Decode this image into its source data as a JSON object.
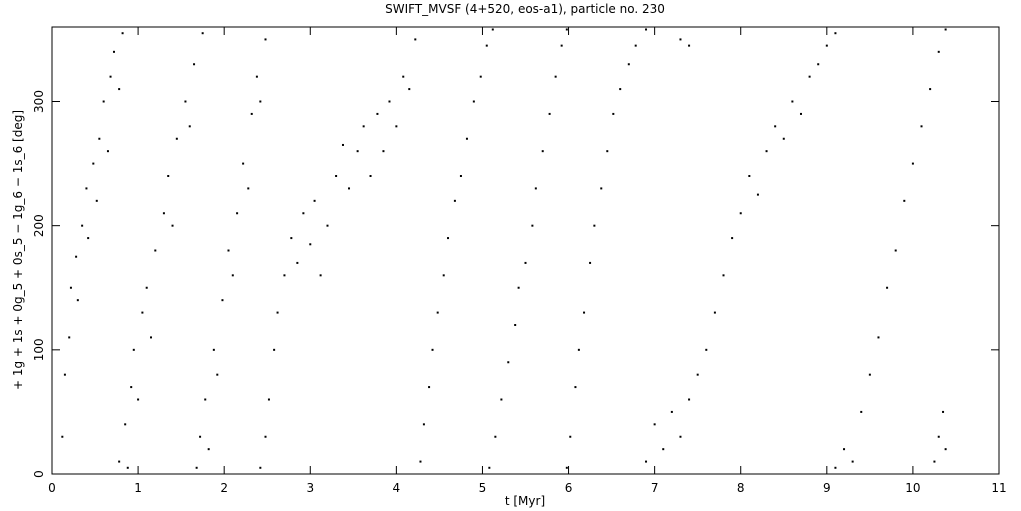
{
  "chart_data": {
    "type": "scatter",
    "title": "SWIFT_MVSF (4+520, eos-a1), particle no. 230",
    "x_label": "t [Myr]",
    "y_label": "+ 1g + 1s + 0g_5 + 0s_5 − 1g_6 − 1s_6 [deg]",
    "color": "#000000",
    "xlim": [
      0,
      11
    ],
    "ylim": [
      0,
      360
    ],
    "xticks": [
      0,
      1,
      2,
      3,
      4,
      5,
      6,
      7,
      8,
      9,
      10,
      11
    ],
    "yticks": [
      0,
      100,
      200,
      300
    ],
    "x": [
      0.12,
      0.15,
      0.2,
      0.22,
      0.28,
      0.3,
      0.35,
      0.4,
      0.42,
      0.48,
      0.52,
      0.55,
      0.6,
      0.65,
      0.68,
      0.72,
      0.78,
      0.82,
      0.78,
      0.85,
      0.88,
      0.92,
      0.95,
      1.0,
      1.05,
      1.1,
      1.15,
      1.2,
      1.3,
      1.35,
      1.4,
      1.45,
      1.55,
      1.6,
      1.65,
      1.75,
      1.68,
      1.72,
      1.78,
      1.82,
      1.88,
      1.92,
      1.98,
      2.05,
      2.1,
      2.15,
      2.22,
      2.28,
      2.32,
      2.38,
      2.42,
      2.48,
      2.42,
      2.48,
      2.52,
      2.58,
      2.62,
      2.7,
      2.78,
      2.85,
      2.92,
      3.0,
      3.05,
      3.12,
      3.2,
      3.3,
      3.38,
      3.45,
      3.55,
      3.62,
      3.7,
      3.78,
      3.85,
      3.92,
      4.0,
      4.08,
      4.15,
      4.22,
      4.28,
      4.32,
      4.38,
      4.42,
      4.48,
      4.55,
      4.6,
      4.68,
      4.75,
      4.82,
      4.9,
      4.98,
      5.05,
      5.12,
      5.08,
      5.15,
      5.22,
      5.3,
      5.38,
      5.42,
      5.5,
      5.58,
      5.62,
      5.7,
      5.78,
      5.85,
      5.92,
      5.98,
      5.98,
      6.02,
      6.08,
      6.12,
      6.18,
      6.25,
      6.3,
      6.38,
      6.45,
      6.52,
      6.6,
      6.7,
      6.78,
      6.9,
      7.3,
      7.4,
      6.9,
      7.0,
      7.1,
      7.2,
      7.3,
      7.4,
      7.5,
      7.6,
      7.7,
      7.8,
      7.9,
      8.0,
      8.1,
      8.2,
      8.3,
      8.4,
      8.5,
      8.6,
      8.7,
      8.8,
      8.9,
      9.0,
      9.1,
      9.1,
      9.2,
      9.3,
      9.4,
      9.5,
      9.6,
      9.7,
      9.8,
      9.9,
      10.0,
      10.1,
      10.2,
      10.3,
      10.38,
      10.25,
      10.3,
      10.35,
      10.38
    ],
    "y": [
      30,
      80,
      110,
      150,
      175,
      140,
      200,
      230,
      190,
      250,
      220,
      270,
      300,
      260,
      320,
      340,
      310,
      355,
      10,
      40,
      5,
      70,
      100,
      60,
      130,
      150,
      110,
      180,
      210,
      240,
      200,
      270,
      300,
      280,
      330,
      355,
      5,
      30,
      60,
      20,
      100,
      80,
      140,
      180,
      160,
      210,
      250,
      230,
      290,
      320,
      300,
      350,
      5,
      30,
      60,
      100,
      130,
      160,
      190,
      170,
      210,
      185,
      220,
      160,
      200,
      240,
      265,
      230,
      260,
      280,
      240,
      290,
      260,
      300,
      280,
      320,
      310,
      350,
      10,
      40,
      70,
      100,
      130,
      160,
      190,
      220,
      240,
      270,
      300,
      320,
      345,
      358,
      5,
      30,
      60,
      90,
      120,
      150,
      170,
      200,
      230,
      260,
      290,
      320,
      345,
      358,
      5,
      30,
      70,
      100,
      130,
      170,
      200,
      230,
      260,
      290,
      310,
      330,
      345,
      358,
      350,
      345,
      10,
      40,
      20,
      50,
      30,
      60,
      80,
      100,
      130,
      160,
      190,
      210,
      240,
      225,
      260,
      280,
      270,
      300,
      290,
      320,
      330,
      345,
      355,
      5,
      20,
      10,
      50,
      80,
      110,
      150,
      180,
      220,
      250,
      280,
      310,
      340,
      358,
      10,
      30,
      50,
      20
    ]
  }
}
